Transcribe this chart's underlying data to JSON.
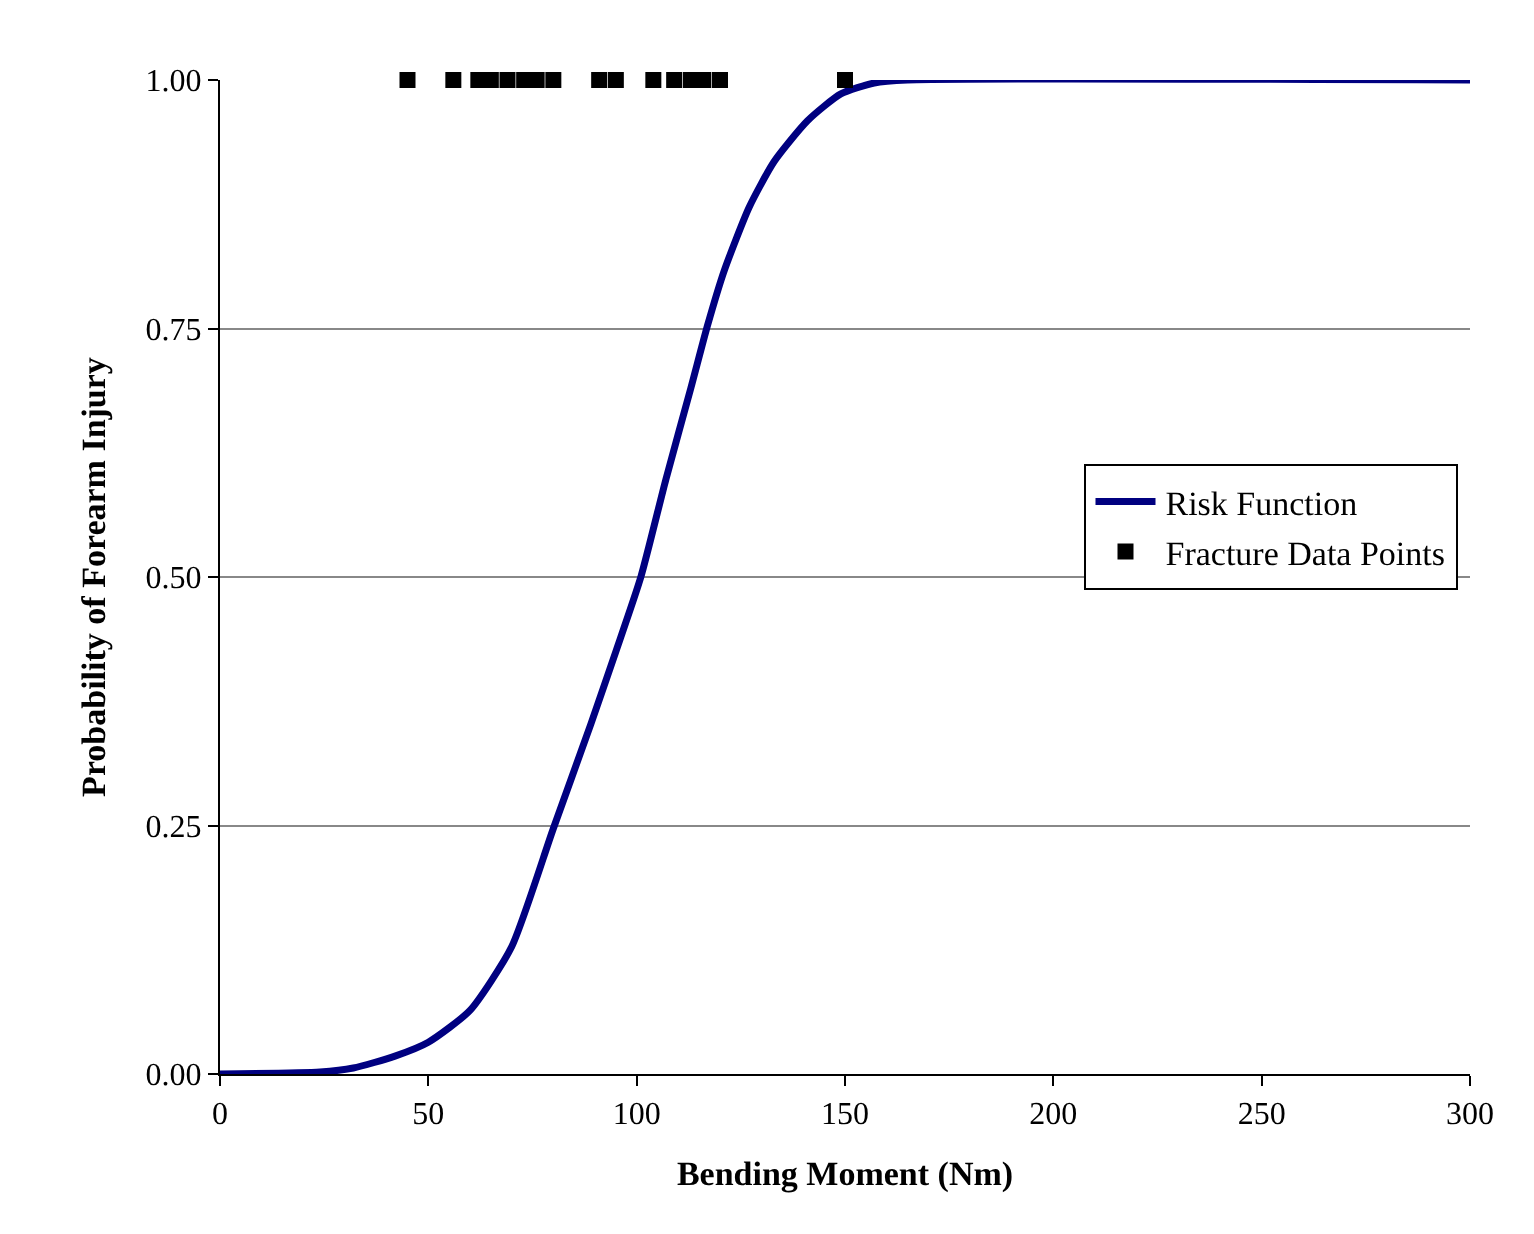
{
  "chart_data": {
    "type": "line",
    "xlabel": "Bending Moment (Nm)",
    "ylabel": "Probability of Forearm Injury",
    "xlim": [
      0,
      300
    ],
    "xticks": [
      0,
      50,
      100,
      150,
      200,
      250,
      300
    ],
    "ylim": [
      0,
      1
    ],
    "yticks": [
      {
        "value": 0,
        "label": "0.00"
      },
      {
        "value": 0.25,
        "label": "0.25"
      },
      {
        "value": 0.5,
        "label": "0.50"
      },
      {
        "value": 0.75,
        "label": "0.75"
      },
      {
        "value": 1,
        "label": "1.00"
      }
    ],
    "grid": "y",
    "legend": "right",
    "series": [
      {
        "name": "Risk Function",
        "color": "#000080",
        "marker": "none",
        "line_style": "solid",
        "x": [
          0,
          24,
          32,
          42,
          50,
          60,
          70,
          80,
          89,
          95,
          101,
          107,
          113,
          117,
          121,
          127,
          133,
          141,
          149,
          157,
          165,
          300
        ],
        "values": [
          0,
          0.002,
          0.006,
          0.018,
          0.032,
          0.064,
          0.128,
          0.247,
          0.352,
          0.425,
          0.5,
          0.598,
          0.69,
          0.753,
          0.808,
          0.872,
          0.918,
          0.959,
          0.986,
          0.997,
          1.0,
          1.0
        ]
      },
      {
        "name": "Fracture Data Points",
        "type": "scatter",
        "color": "#000000",
        "marker": "square",
        "x": [
          45,
          56,
          62,
          65,
          69,
          73,
          76,
          80,
          91,
          95,
          104,
          109,
          113,
          116,
          120,
          150
        ],
        "values": [
          1,
          1,
          1,
          1,
          1,
          1,
          1,
          1,
          1,
          1,
          1,
          1,
          1,
          1,
          1,
          1
        ]
      }
    ]
  }
}
